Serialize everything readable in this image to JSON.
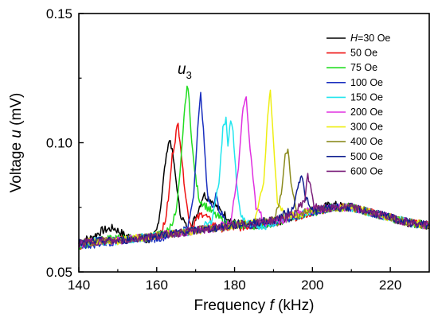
{
  "chart_data": {
    "type": "line",
    "title": "",
    "xlabel": {
      "prefix": "Frequency ",
      "var": "f",
      "suffix": " (kHz)"
    },
    "ylabel": {
      "prefix": "Voltage ",
      "var": "u",
      "suffix": " (mV)"
    },
    "xlim": [
      140,
      230
    ],
    "ylim": [
      0.05,
      0.15
    ],
    "xticks": [
      140,
      160,
      180,
      200,
      220
    ],
    "yticks": [
      0.05,
      0.1,
      0.15
    ],
    "ytick_labels": [
      "0.05",
      "0.10",
      "0.15"
    ],
    "grid": false,
    "legend_position": "top-right",
    "annotation": {
      "main": "u",
      "sub": "3",
      "x": 167,
      "y": 0.123
    },
    "series": [
      {
        "legend_prefix": "H",
        "name": "=30 Oe",
        "color": "#000000",
        "x": [
          140,
          143,
          146,
          149,
          152,
          155,
          157,
          159,
          160,
          161,
          162,
          163,
          163.5,
          164,
          165,
          166,
          168,
          170,
          172,
          174,
          176,
          180,
          185,
          190,
          195,
          200,
          205,
          210,
          215,
          220,
          225,
          230
        ],
        "y": [
          0.062,
          0.063,
          0.066,
          0.067,
          0.064,
          0.063,
          0.062,
          0.063,
          0.066,
          0.075,
          0.09,
          0.1,
          0.101,
          0.097,
          0.085,
          0.073,
          0.066,
          0.071,
          0.08,
          0.078,
          0.074,
          0.069,
          0.068,
          0.069,
          0.071,
          0.074,
          0.076,
          0.075,
          0.073,
          0.071,
          0.069,
          0.068
        ]
      },
      {
        "name": "50 Oe",
        "color": "#ee1111",
        "x": [
          140,
          145,
          150,
          155,
          160,
          162,
          163,
          164,
          165,
          165.5,
          166,
          167,
          168,
          169,
          170,
          172,
          174,
          176,
          180,
          185,
          190,
          195,
          200,
          205,
          210,
          215,
          220,
          225,
          230
        ],
        "y": [
          0.06,
          0.062,
          0.063,
          0.063,
          0.064,
          0.068,
          0.078,
          0.095,
          0.104,
          0.107,
          0.101,
          0.085,
          0.073,
          0.067,
          0.07,
          0.073,
          0.069,
          0.067,
          0.067,
          0.068,
          0.069,
          0.071,
          0.073,
          0.075,
          0.075,
          0.073,
          0.071,
          0.069,
          0.068
        ]
      },
      {
        "name": "75 Oe",
        "color": "#22dd22",
        "x": [
          140,
          145,
          150,
          155,
          160,
          163,
          165,
          166,
          167,
          167.8,
          168.3,
          169,
          170,
          171,
          173,
          175,
          178,
          182,
          186,
          190,
          195,
          200,
          205,
          210,
          215,
          220,
          225,
          230
        ],
        "y": [
          0.06,
          0.062,
          0.063,
          0.063,
          0.064,
          0.066,
          0.073,
          0.088,
          0.11,
          0.122,
          0.117,
          0.1,
          0.086,
          0.078,
          0.075,
          0.072,
          0.069,
          0.068,
          0.068,
          0.069,
          0.071,
          0.073,
          0.075,
          0.075,
          0.073,
          0.071,
          0.069,
          0.068
        ]
      },
      {
        "name": "100 Oe",
        "color": "#1a2fbf",
        "x": [
          140,
          145,
          150,
          155,
          160,
          165,
          168,
          169.5,
          170.5,
          171.3,
          172,
          173,
          174.5,
          175.2,
          176,
          178,
          182,
          186,
          190,
          195,
          200,
          205,
          210,
          215,
          220,
          225,
          230
        ],
        "y": [
          0.06,
          0.061,
          0.062,
          0.063,
          0.063,
          0.065,
          0.067,
          0.08,
          0.105,
          0.119,
          0.105,
          0.08,
          0.074,
          0.082,
          0.074,
          0.069,
          0.068,
          0.068,
          0.069,
          0.071,
          0.073,
          0.075,
          0.075,
          0.073,
          0.071,
          0.069,
          0.068
        ]
      },
      {
        "name": "150 Oe",
        "color": "#22e5ee",
        "x": [
          140,
          145,
          150,
          155,
          160,
          165,
          170,
          174,
          176,
          177,
          177.8,
          178.3,
          179,
          179.6,
          180.5,
          181.5,
          184,
          188,
          192,
          196,
          200,
          205,
          210,
          215,
          220,
          225,
          230
        ],
        "y": [
          0.061,
          0.062,
          0.062,
          0.063,
          0.064,
          0.065,
          0.066,
          0.069,
          0.085,
          0.105,
          0.11,
          0.1,
          0.108,
          0.104,
          0.085,
          0.072,
          0.068,
          0.068,
          0.07,
          0.072,
          0.074,
          0.075,
          0.075,
          0.073,
          0.071,
          0.069,
          0.068
        ]
      },
      {
        "name": "200 Oe",
        "color": "#e030e0",
        "x": [
          140,
          145,
          150,
          155,
          160,
          165,
          170,
          175,
          179,
          181,
          182.2,
          183,
          184,
          185.5,
          188,
          192,
          196,
          200,
          205,
          210,
          215,
          220,
          225,
          230
        ],
        "y": [
          0.061,
          0.062,
          0.062,
          0.063,
          0.064,
          0.065,
          0.066,
          0.067,
          0.069,
          0.09,
          0.115,
          0.117,
          0.098,
          0.075,
          0.069,
          0.07,
          0.072,
          0.074,
          0.075,
          0.075,
          0.073,
          0.071,
          0.069,
          0.068
        ]
      },
      {
        "name": "300 Oe",
        "color": "#eeee11",
        "x": [
          140,
          145,
          150,
          155,
          160,
          165,
          170,
          175,
          180,
          185,
          187.5,
          188.5,
          189.2,
          190,
          191,
          193,
          196,
          200,
          205,
          210,
          215,
          220,
          225,
          230
        ],
        "y": [
          0.061,
          0.062,
          0.062,
          0.063,
          0.064,
          0.065,
          0.066,
          0.067,
          0.068,
          0.069,
          0.085,
          0.11,
          0.121,
          0.1,
          0.078,
          0.071,
          0.072,
          0.074,
          0.075,
          0.075,
          0.073,
          0.071,
          0.069,
          0.068
        ]
      },
      {
        "name": "400 Oe",
        "color": "#8b8b1e",
        "x": [
          140,
          145,
          150,
          155,
          160,
          165,
          170,
          175,
          180,
          185,
          190,
          192,
          193,
          193.7,
          194.5,
          196,
          198,
          201,
          205,
          210,
          215,
          220,
          225,
          230
        ],
        "y": [
          0.061,
          0.062,
          0.062,
          0.063,
          0.064,
          0.065,
          0.066,
          0.067,
          0.068,
          0.069,
          0.07,
          0.08,
          0.095,
          0.098,
          0.085,
          0.072,
          0.073,
          0.074,
          0.075,
          0.075,
          0.073,
          0.071,
          0.069,
          0.068
        ]
      },
      {
        "name": "500 Oe",
        "color": "#0f1d8f",
        "x": [
          140,
          145,
          150,
          155,
          160,
          165,
          170,
          175,
          180,
          185,
          190,
          195,
          196.5,
          197.2,
          198,
          199.5,
          202,
          205,
          210,
          215,
          220,
          225,
          230
        ],
        "y": [
          0.061,
          0.062,
          0.062,
          0.063,
          0.064,
          0.065,
          0.066,
          0.067,
          0.068,
          0.069,
          0.07,
          0.074,
          0.085,
          0.088,
          0.08,
          0.074,
          0.074,
          0.075,
          0.075,
          0.073,
          0.071,
          0.069,
          0.068
        ]
      },
      {
        "name": "600 Oe",
        "color": "#7a1f7a",
        "x": [
          140,
          145,
          150,
          155,
          160,
          165,
          170,
          175,
          180,
          185,
          190,
          195,
          198,
          198.8,
          199.5,
          200.5,
          203,
          206,
          210,
          215,
          220,
          225,
          230
        ],
        "y": [
          0.061,
          0.062,
          0.062,
          0.063,
          0.064,
          0.065,
          0.066,
          0.067,
          0.068,
          0.069,
          0.07,
          0.072,
          0.078,
          0.087,
          0.084,
          0.075,
          0.074,
          0.075,
          0.075,
          0.073,
          0.071,
          0.069,
          0.068
        ]
      }
    ]
  }
}
